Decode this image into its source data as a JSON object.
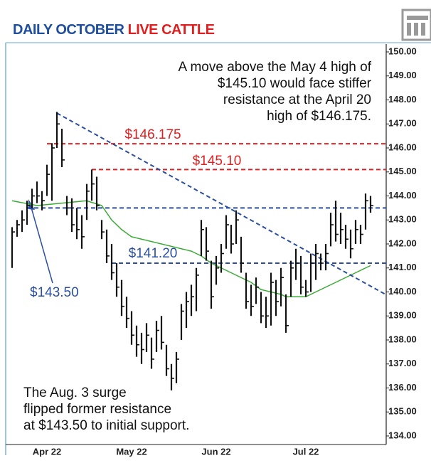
{
  "chart_data": {
    "type": "ohlc",
    "title_parts": [
      {
        "text": "DAILY OCTOBER",
        "color": "#1f4e9c"
      },
      {
        "text": "LIVE CATTLE",
        "color": "#e02020"
      }
    ],
    "categories": [
      null,
      null,
      null,
      null,
      null,
      null,
      null,
      "Apr 22",
      null,
      null,
      null,
      null,
      null,
      null,
      null,
      null,
      null,
      null,
      null,
      null,
      null,
      null,
      null,
      null,
      "May 22",
      null,
      null,
      null,
      null,
      null,
      null,
      null,
      null,
      null,
      null,
      null,
      null,
      null,
      null,
      null,
      null,
      "Jun 22",
      null,
      null,
      null,
      null,
      null,
      null,
      null,
      null,
      null,
      null,
      null,
      null,
      null,
      null,
      null,
      null,
      null,
      "Jul 22",
      null,
      null,
      null,
      null,
      null,
      null,
      null,
      null,
      null,
      null,
      null,
      null,
      null
    ],
    "high": [
      142.7,
      143.0,
      143.4,
      143.8,
      144.3,
      144.6,
      144.2,
      145.3,
      146.2,
      147.5,
      146.8,
      144.0,
      143.9,
      143.5,
      143.2,
      144.5,
      145.1,
      144.8,
      143.0,
      142.6,
      142.0,
      141.2,
      140.5,
      139.8,
      139.2,
      138.6,
      138.3,
      138.7,
      138.1,
      138.8,
      139.0,
      137.8,
      137.0,
      137.5,
      139.5,
      140.0,
      140.3,
      141.0,
      143.0,
      142.7,
      141.3,
      141.5,
      142.0,
      143.2,
      142.8,
      143.4,
      142.3,
      140.8,
      140.3,
      140.6,
      140.0,
      139.8,
      140.8,
      140.5,
      141.0,
      139.9,
      141.3,
      141.8,
      141.5,
      140.5,
      141.6,
      142.0,
      141.6,
      142.0,
      143.3,
      143.8,
      143.3,
      142.8,
      142.6,
      143.0,
      142.8,
      144.1,
      144.0
    ],
    "low": [
      141.0,
      142.3,
      142.5,
      142.8,
      143.5,
      143.7,
      143.4,
      144.0,
      143.8,
      146.0,
      145.2,
      143.2,
      142.5,
      142.2,
      141.8,
      143.0,
      143.8,
      143.4,
      142.2,
      141.2,
      140.5,
      139.8,
      139.0,
      138.5,
      137.8,
      137.3,
      137.0,
      137.5,
      136.8,
      137.5,
      137.6,
      136.5,
      135.9,
      136.2,
      138.0,
      138.5,
      139.0,
      139.2,
      141.5,
      141.3,
      139.3,
      140.3,
      140.8,
      141.8,
      141.6,
      142.0,
      140.8,
      139.3,
      139.0,
      139.5,
      138.7,
      138.5,
      138.6,
      139.0,
      139.4,
      138.3,
      139.8,
      140.5,
      139.9,
      139.8,
      140.0,
      140.5,
      140.9,
      140.9,
      141.9,
      142.1,
      142.0,
      141.8,
      141.4,
      142.0,
      142.0,
      142.6,
      143.3
    ],
    "close": [
      142.5,
      142.8,
      143.0,
      143.6,
      144.0,
      144.0,
      143.8,
      144.9,
      146.0,
      147.0,
      145.5,
      143.5,
      142.8,
      142.6,
      142.3,
      144.2,
      144.5,
      143.6,
      142.5,
      141.5,
      140.8,
      140.2,
      139.4,
      138.9,
      138.2,
      137.8,
      137.6,
      138.2,
      137.2,
      138.4,
      137.9,
      136.8,
      136.4,
      137.2,
      139.2,
      139.6,
      139.8,
      140.7,
      142.6,
      141.7,
      139.8,
      141.0,
      141.6,
      142.8,
      142.0,
      143.0,
      141.2,
      139.6,
      139.4,
      140.2,
      139.0,
      139.0,
      140.4,
      139.6,
      140.6,
      138.6,
      141.0,
      141.2,
      140.2,
      140.0,
      141.2,
      141.6,
      141.2,
      141.6,
      142.8,
      142.4,
      142.6,
      142.2,
      141.8,
      142.6,
      142.4,
      143.8,
      143.6
    ],
    "bar_color": "#111111",
    "moving_average": {
      "color": "#3aaa35",
      "values": [
        143.8,
        143.76,
        143.72,
        143.68,
        143.64,
        143.6,
        143.62,
        143.64,
        143.66,
        143.68,
        143.7,
        143.72,
        143.74,
        143.76,
        143.78,
        143.8,
        143.73,
        143.67,
        143.6,
        143.3,
        143.0,
        142.8,
        142.6,
        142.45,
        142.3,
        142.25,
        142.2,
        142.15,
        142.1,
        142.05,
        142.0,
        141.95,
        141.9,
        141.85,
        141.8,
        141.75,
        141.7,
        141.6,
        141.5,
        141.35,
        141.2,
        141.1,
        141.0,
        140.9,
        140.8,
        140.7,
        140.6,
        140.5,
        140.4,
        140.25,
        140.1,
        140.05,
        140.0,
        139.95,
        139.9,
        139.8,
        139.8,
        139.8,
        139.8,
        139.8,
        139.9,
        140.0,
        140.1,
        140.2,
        140.3,
        140.4,
        140.5,
        140.6,
        140.7,
        140.8,
        140.9,
        141.0,
        141.1
      ]
    },
    "levels": [
      {
        "value": 146.175,
        "label": "$146.175",
        "color": "#e02020",
        "from": 7
      },
      {
        "value": 145.1,
        "label": "$145.10",
        "color": "#e02020",
        "from": 16
      },
      {
        "value": 143.5,
        "label": "$143.50",
        "color": "#2a4fa0",
        "from": 3
      },
      {
        "value": 141.2,
        "label": "$141.20",
        "color": "#2a4fa0",
        "from": 20
      }
    ],
    "trendline": {
      "color": "#2a4fa0",
      "from": [
        9,
        147.45
      ],
      "to": [
        75,
        139.9
      ]
    },
    "annotations": [
      [
        "A move above the May 4 high of",
        "$145.10 would face stiffer",
        "resistance at the April 20",
        "high of $146.175."
      ],
      [
        "The Aug. 3 surge",
        "flipped former resistance",
        "at $143.50 to initial support."
      ]
    ],
    "ylim": [
      133.6,
      150.2
    ],
    "yticks": [
      {
        "value": 150,
        "label": "150.00"
      },
      {
        "value": 149,
        "label": "149.00"
      },
      {
        "value": 148,
        "label": "148.00"
      },
      {
        "value": 147,
        "label": "147.00"
      },
      {
        "value": 146,
        "label": "146.00"
      },
      {
        "value": 145,
        "label": "145.00"
      },
      {
        "value": 144,
        "label": "144.00"
      },
      {
        "value": 143,
        "label": "143.00"
      },
      {
        "value": 142,
        "label": "142.00"
      },
      {
        "value": 141,
        "label": "141.00"
      },
      {
        "value": 140,
        "label": "140.00"
      },
      {
        "value": 139,
        "label": "139.00"
      },
      {
        "value": 138,
        "label": "138.00"
      },
      {
        "value": 137,
        "label": "137.00"
      },
      {
        "value": 136,
        "label": "136.00"
      },
      {
        "value": 135,
        "label": "135.00"
      },
      {
        "value": 134,
        "label": "134.00"
      }
    ]
  }
}
